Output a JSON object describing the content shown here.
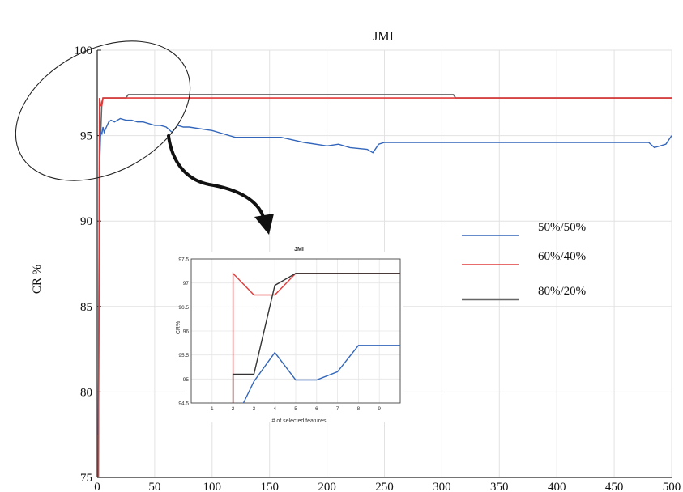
{
  "chart_data": [
    {
      "type": "line",
      "title": "JMI",
      "xlabel": "",
      "ylabel": "CR %",
      "xlim": [
        0,
        500
      ],
      "ylim": [
        75,
        100
      ],
      "xticks": [
        0,
        50,
        100,
        150,
        200,
        250,
        300,
        350,
        400,
        450,
        500
      ],
      "yticks": [
        75,
        80,
        85,
        90,
        95,
        100
      ],
      "grid": true,
      "legend_position": "right",
      "series": [
        {
          "name": "50%/50%",
          "color": "#3366bb",
          "x": [
            1,
            2,
            3,
            4,
            5,
            6,
            8,
            10,
            12,
            15,
            20,
            25,
            30,
            35,
            40,
            45,
            50,
            55,
            60,
            65,
            70,
            75,
            80,
            90,
            100,
            110,
            120,
            140,
            160,
            180,
            200,
            210,
            220,
            235,
            240,
            245,
            250,
            300,
            350,
            400,
            450,
            480,
            485,
            495,
            500
          ],
          "y": [
            77.5,
            93.0,
            95.2,
            95.1,
            95.5,
            95.2,
            95.5,
            95.8,
            95.9,
            95.8,
            96.0,
            95.9,
            95.9,
            95.8,
            95.8,
            95.7,
            95.6,
            95.6,
            95.5,
            95.2,
            95.6,
            95.5,
            95.5,
            95.4,
            95.3,
            95.1,
            94.9,
            94.9,
            94.9,
            94.6,
            94.4,
            94.5,
            94.3,
            94.2,
            94.0,
            94.5,
            94.6,
            94.6,
            94.6,
            94.6,
            94.6,
            94.6,
            94.3,
            94.5,
            95.0
          ]
        },
        {
          "name": "60%/40%",
          "color": "#e23a3a",
          "x": [
            1,
            2,
            3,
            4,
            5,
            6,
            500
          ],
          "y": [
            75.0,
            97.2,
            96.75,
            96.75,
            97.2,
            97.2,
            97.2
          ]
        },
        {
          "name": "80%/20%",
          "color": "#666666",
          "x": [
            1,
            2,
            3,
            4,
            5,
            6,
            10,
            25,
            27,
            310,
            312,
            500
          ],
          "y": [
            75.0,
            95.1,
            95.1,
            96.95,
            97.2,
            97.2,
            97.2,
            97.2,
            97.4,
            97.4,
            97.2,
            97.2
          ]
        }
      ]
    },
    {
      "type": "line",
      "title": "JMI",
      "xlabel": "# of selected features",
      "ylabel": "CR%",
      "xlim": [
        0,
        10
      ],
      "ylim": [
        94.5,
        97.5
      ],
      "xticks": [
        1,
        2,
        3,
        4,
        5,
        6,
        7,
        8,
        9
      ],
      "yticks": [
        94.5,
        95,
        95.5,
        96,
        96.5,
        97,
        97.5
      ],
      "yticklabels": [
        "94.5",
        "95",
        "95.5",
        "96",
        "96.5",
        "97",
        "97.5"
      ],
      "grid": true,
      "series": [
        {
          "color": "#3366bb",
          "x": [
            2.5,
            3,
            4,
            5,
            6,
            7,
            8,
            10
          ],
          "y": [
            94.5,
            94.95,
            95.55,
            94.98,
            94.98,
            95.15,
            95.7,
            95.7
          ]
        },
        {
          "color": "#e23a3a",
          "x": [
            2,
            2,
            3,
            4,
            5,
            10
          ],
          "y": [
            94.5,
            97.2,
            96.75,
            96.75,
            97.2,
            97.2
          ]
        },
        {
          "color": "#333333",
          "x": [
            2,
            2,
            3,
            4,
            5,
            10
          ],
          "y": [
            94.5,
            95.1,
            95.1,
            96.95,
            97.2,
            97.2
          ]
        }
      ]
    }
  ]
}
